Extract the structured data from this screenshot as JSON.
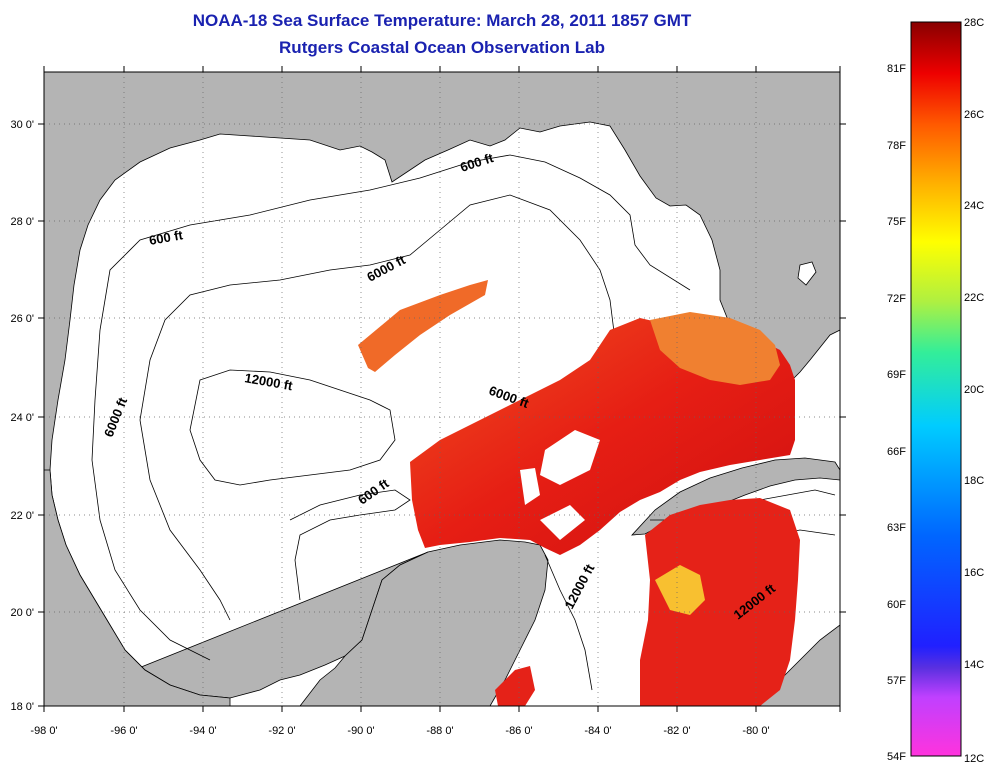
{
  "header": {
    "title": "NOAA-18 Sea Surface Temperature:  March 28, 2011 1857 GMT",
    "subtitle": "Rutgers Coastal Ocean Observation Lab"
  },
  "map": {
    "lon_labels": [
      "-98 0'",
      "-96 0'",
      "-94 0'",
      "-92 0'",
      "-90 0'",
      "-88 0'",
      "-86 0'",
      "-84 0'",
      "-82 0'",
      "-80 0'"
    ],
    "lat_labels": [
      "30 0'",
      "28 0'",
      "26 0'",
      "24 0'",
      "22 0'",
      "20 0'",
      "18 0'"
    ],
    "contour_labels": [
      "600 ft",
      "600 ft",
      "6000 ft",
      "6000 ft",
      "12000 ft",
      "6000 ft",
      "600 ft",
      "12000 ft",
      "12000 ft"
    ],
    "land_color": "#b4b4b4",
    "water_color": "#ffffff"
  },
  "colorbar": {
    "celsius": [
      "28C",
      "26C",
      "24C",
      "22C",
      "20C",
      "18C",
      "16C",
      "14C",
      "12C"
    ],
    "fahrenheit": [
      "81F",
      "78F",
      "75F",
      "72F",
      "69F",
      "66F",
      "63F",
      "60F",
      "57F",
      "54F"
    ]
  }
}
